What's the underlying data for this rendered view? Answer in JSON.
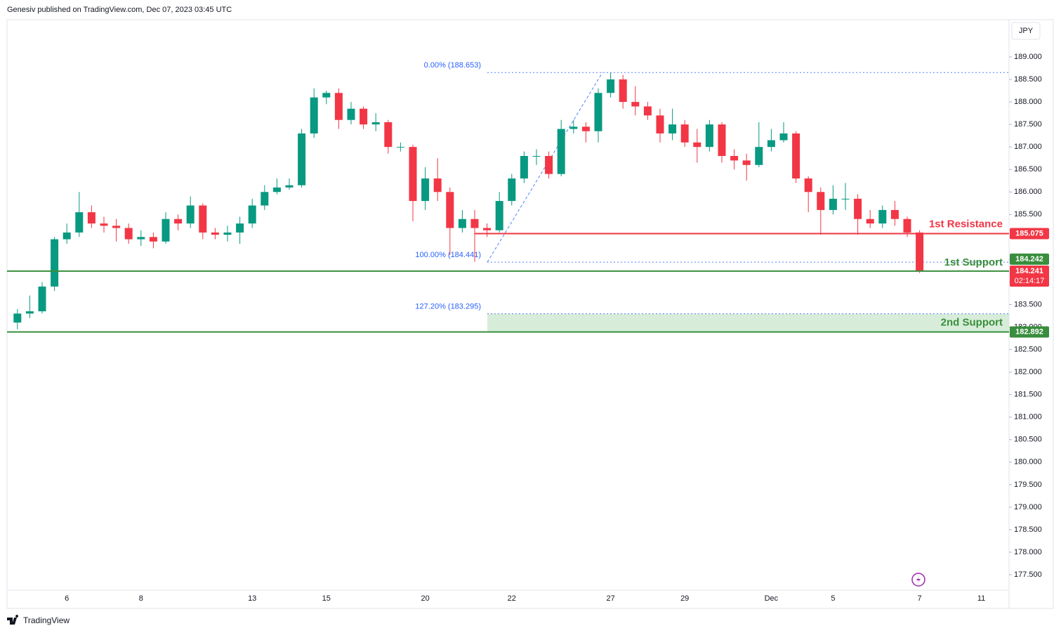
{
  "chart_data": {
    "type": "candlestick",
    "header": "Genesiv published on TradingView.com, Dec 07, 2023 03:45 UTC",
    "currency": "JPY",
    "brand": "TradingView",
    "up_color": "#089981",
    "down_color": "#f23645",
    "categories": [
      null,
      null,
      null,
      null,
      "6",
      null,
      null,
      null,
      null,
      null,
      "8",
      null,
      null,
      null,
      null,
      null,
      null,
      null,
      null,
      "13",
      null,
      null,
      null,
      null,
      null,
      "15",
      null,
      null,
      null,
      null,
      null,
      null,
      null,
      "20",
      null,
      null,
      null,
      null,
      null,
      null,
      "22",
      null,
      null,
      null,
      null,
      null,
      null,
      null,
      "27",
      null,
      null,
      null,
      null,
      null,
      "29",
      null,
      null,
      null,
      null,
      null,
      null,
      "Dec",
      null,
      null,
      null,
      null,
      "5",
      null,
      null,
      null,
      null,
      null,
      null,
      "7",
      null,
      null,
      null,
      null,
      "11"
    ],
    "open": [
      183.1,
      183.3,
      183.35,
      183.9,
      184.95,
      185.1,
      185.55,
      185.3,
      185.25,
      185.2,
      184.95,
      185.0,
      184.9,
      185.4,
      185.3,
      185.7,
      185.1,
      185.05,
      185.1,
      185.3,
      185.7,
      186.0,
      186.1,
      186.15,
      187.3,
      188.1,
      188.2,
      187.6,
      187.85,
      187.5,
      187.55,
      187.0,
      187.0,
      185.8,
      186.3,
      186.0,
      185.2,
      185.4,
      185.2,
      185.15,
      185.8,
      186.3,
      186.8,
      186.8,
      186.4,
      187.4,
      187.45,
      187.35,
      188.2,
      188.5,
      188.0,
      187.9,
      187.7,
      187.3,
      187.5,
      187.1,
      187.0,
      187.5,
      186.8,
      186.7,
      186.6,
      187.0,
      187.15,
      187.3,
      186.3,
      186.0,
      185.6,
      185.85,
      185.85,
      185.4,
      185.3,
      185.6,
      185.4,
      185.1,
      null,
      null,
      null,
      null,
      null
    ],
    "high": [
      183.4,
      183.7,
      184.0,
      185.0,
      185.3,
      186.0,
      185.7,
      185.45,
      185.4,
      185.3,
      185.15,
      185.1,
      185.55,
      185.5,
      185.9,
      185.75,
      185.2,
      185.25,
      185.45,
      185.85,
      186.15,
      186.3,
      186.3,
      187.4,
      188.3,
      188.25,
      188.3,
      188.0,
      187.9,
      187.75,
      187.6,
      187.1,
      187.05,
      186.55,
      186.75,
      186.1,
      185.6,
      185.6,
      185.3,
      186.0,
      186.4,
      186.9,
      186.95,
      186.9,
      187.6,
      187.6,
      187.55,
      188.3,
      188.65,
      188.6,
      188.35,
      188.0,
      187.85,
      187.85,
      187.6,
      187.4,
      187.6,
      187.55,
      186.95,
      186.85,
      187.55,
      187.4,
      187.55,
      187.35,
      186.35,
      186.1,
      186.15,
      186.2,
      185.95,
      185.6,
      185.7,
      185.8,
      185.45,
      185.15,
      null,
      null,
      null,
      null,
      null
    ],
    "low": [
      182.95,
      183.2,
      183.3,
      183.8,
      184.85,
      185.0,
      185.2,
      185.1,
      184.9,
      184.85,
      184.8,
      184.75,
      184.85,
      185.15,
      185.2,
      184.95,
      184.95,
      184.9,
      184.85,
      185.2,
      185.6,
      185.95,
      186.05,
      186.1,
      187.2,
      187.95,
      187.4,
      187.5,
      187.4,
      187.35,
      186.85,
      186.9,
      185.35,
      185.6,
      185.8,
      184.6,
      185.1,
      184.45,
      185.0,
      185.1,
      185.7,
      186.2,
      186.6,
      186.3,
      186.35,
      187.3,
      187.1,
      187.1,
      188.1,
      187.85,
      187.7,
      187.6,
      187.1,
      187.15,
      187.0,
      186.65,
      186.9,
      186.65,
      186.5,
      186.25,
      186.55,
      186.9,
      187.1,
      186.2,
      185.55,
      185.05,
      185.5,
      185.6,
      185.05,
      185.2,
      185.2,
      185.25,
      185.0,
      184.2,
      null,
      null,
      null,
      null,
      null
    ],
    "close": [
      183.3,
      183.35,
      183.9,
      184.95,
      185.1,
      185.55,
      185.3,
      185.25,
      185.2,
      184.95,
      185.0,
      184.9,
      185.4,
      185.3,
      185.7,
      185.1,
      185.05,
      185.1,
      185.3,
      185.7,
      186.0,
      186.1,
      186.15,
      187.3,
      188.1,
      188.2,
      187.6,
      187.85,
      187.5,
      187.55,
      187.0,
      187.0,
      185.8,
      186.3,
      186.0,
      185.2,
      185.4,
      185.2,
      185.15,
      185.8,
      186.3,
      186.8,
      186.8,
      186.4,
      187.4,
      187.45,
      187.35,
      188.2,
      188.5,
      188.0,
      187.9,
      187.7,
      187.3,
      187.5,
      187.1,
      187.0,
      187.5,
      186.8,
      186.7,
      186.6,
      187.0,
      187.15,
      187.3,
      186.3,
      186.0,
      185.6,
      185.85,
      185.85,
      185.4,
      185.3,
      185.6,
      185.4,
      185.1,
      184.241,
      null,
      null,
      null,
      null,
      null
    ],
    "countdown": "02:14:17",
    "ylim": [
      176.767,
      189.827
    ],
    "yticks": [
      {
        "value": 189.0,
        "label": "189.000"
      },
      {
        "value": 188.5,
        "label": "188.500"
      },
      {
        "value": 188.0,
        "label": "188.000"
      },
      {
        "value": 187.5,
        "label": "187.500"
      },
      {
        "value": 187.0,
        "label": "187.000"
      },
      {
        "value": 186.5,
        "label": "186.500"
      },
      {
        "value": 186.0,
        "label": "186.000"
      },
      {
        "value": 185.5,
        "label": "185.500"
      },
      {
        "value": 185.0,
        "label": "185.000"
      },
      {
        "value": 184.5,
        "label": "184.500"
      },
      {
        "value": 184.0,
        "label": "184.000"
      },
      {
        "value": 183.5,
        "label": "183.500"
      },
      {
        "value": 183.0,
        "label": "183.000"
      },
      {
        "value": 182.5,
        "label": "182.500"
      },
      {
        "value": 182.0,
        "label": "182.000"
      },
      {
        "value": 181.5,
        "label": "181.500"
      },
      {
        "value": 181.0,
        "label": "181.000"
      },
      {
        "value": 180.5,
        "label": "180.500"
      },
      {
        "value": 180.0,
        "label": "180.000"
      },
      {
        "value": 179.5,
        "label": "179.500"
      },
      {
        "value": 179.0,
        "label": "179.000"
      },
      {
        "value": 178.5,
        "label": "178.500"
      },
      {
        "value": 178.0,
        "label": "178.000"
      },
      {
        "value": 177.5,
        "label": "177.500"
      }
    ],
    "levels": [
      {
        "name": "1st Resistance",
        "value": 185.075,
        "color": "#f23645"
      },
      {
        "name": "1st Support",
        "value": 184.242,
        "color": "#388e3c"
      },
      {
        "name": "2nd Support",
        "value": 182.892,
        "color": "#388e3c"
      }
    ],
    "fibs": [
      {
        "value": 188.653,
        "label": "0.00% (188.653)"
      },
      {
        "value": 184.441,
        "label": "100.00% (184.441)"
      },
      {
        "value": 183.295,
        "label": "127.20% (183.295)"
      }
    ],
    "fib_color": "#2962ff",
    "zone_color": "#c8e6c9"
  }
}
